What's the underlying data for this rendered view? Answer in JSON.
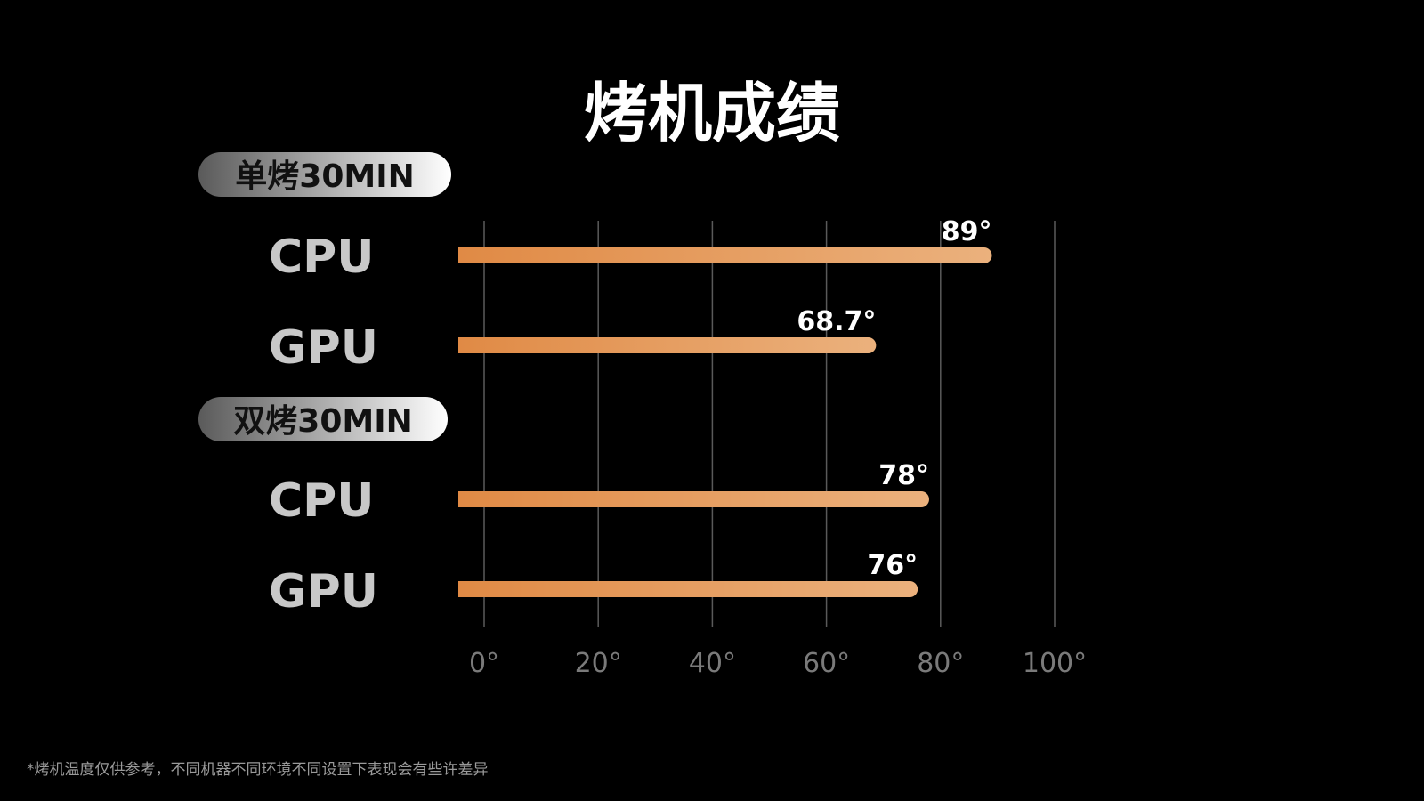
{
  "colors": {
    "background": "#000000",
    "bar_start": "#e08a45",
    "bar_end": "#ebb17d",
    "grid": "#5a5a5a",
    "pill_start": "#5a5a5a",
    "pill_end": "#ffffff"
  },
  "chart_data": {
    "type": "bar",
    "orientation": "horizontal",
    "title": "烤机成绩",
    "value_suffix": "°",
    "xlim": [
      0,
      100
    ],
    "x_ticks": [
      0,
      20,
      40,
      60,
      80,
      100
    ],
    "x_tick_labels": [
      "0°",
      "20°",
      "40°",
      "60°",
      "80°",
      "100°"
    ],
    "grid": true,
    "groups": [
      {
        "label": "单烤30MIN",
        "bars": [
          {
            "category": "CPU",
            "value": 89,
            "label": "89°"
          },
          {
            "category": "GPU",
            "value": 68.7,
            "label": "68.7°"
          }
        ]
      },
      {
        "label": "双烤30MIN",
        "bars": [
          {
            "category": "CPU",
            "value": 78,
            "label": "78°"
          },
          {
            "category": "GPU",
            "value": 76,
            "label": "76°"
          }
        ]
      }
    ],
    "footnote": "*烤机温度仅供参考，不同机器不同环境不同设置下表现会有些许差异"
  }
}
